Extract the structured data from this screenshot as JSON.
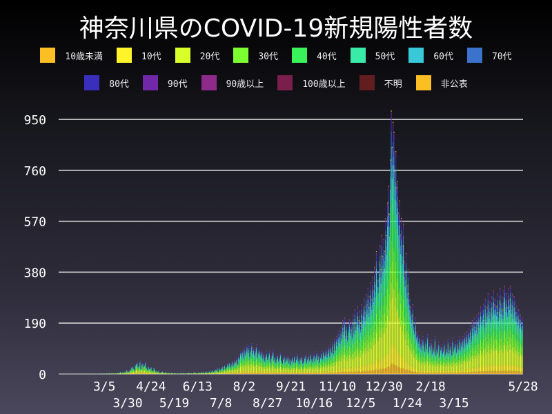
{
  "chart_data": {
    "type": "bar",
    "stacked": true,
    "title": "神奈川県のCOVID-19新規陽性者数",
    "xlabel": "",
    "ylabel": "",
    "ylim": [
      0,
      950
    ],
    "yticks": [
      0,
      190,
      380,
      570,
      760,
      950
    ],
    "grid": true,
    "legend_placement": "top",
    "x_start": "2020-01-16",
    "x_end": "2021-05-28",
    "xtick_labels": [
      "3/5",
      "3/30",
      "4/24",
      "5/19",
      "6/13",
      "7/8",
      "8/2",
      "8/27",
      "9/21",
      "10/16",
      "11/10",
      "12/5",
      "12/30",
      "1/24",
      "2/18",
      "3/15",
      "5/28"
    ],
    "xtick_dates": [
      "2020-03-05",
      "2020-03-30",
      "2020-04-24",
      "2020-05-19",
      "2020-06-13",
      "2020-07-08",
      "2020-08-02",
      "2020-08-27",
      "2020-09-21",
      "2020-10-16",
      "2020-11-10",
      "2020-12-05",
      "2020-12-30",
      "2021-01-24",
      "2021-02-18",
      "2021-03-15",
      "2021-05-28"
    ],
    "series": [
      {
        "name": "10歳未満",
        "color": "#fbbf24",
        "share": 0.04
      },
      {
        "name": "10代",
        "color": "#fff42a",
        "share": 0.08
      },
      {
        "name": "20代",
        "color": "#d8ff2a",
        "share": 0.22
      },
      {
        "name": "30代",
        "color": "#7cff30",
        "share": 0.16
      },
      {
        "name": "40代",
        "color": "#38f45a",
        "share": 0.15
      },
      {
        "name": "50代",
        "color": "#3aeaa8",
        "share": 0.13
      },
      {
        "name": "60代",
        "color": "#38c8d8",
        "share": 0.08
      },
      {
        "name": "70代",
        "color": "#3a72cc",
        "share": 0.06
      },
      {
        "name": "80代",
        "color": "#3a2ebc",
        "share": 0.045
      },
      {
        "name": "90代",
        "color": "#7028a8",
        "share": 0.02
      },
      {
        "name": "90歳以上",
        "color": "#8e2a8a",
        "share": 0.005
      },
      {
        "name": "100歳以上",
        "color": "#7a1e4c",
        "share": 0.002
      },
      {
        "name": "不明",
        "color": "#621e1e",
        "share": 0.003
      },
      {
        "name": "非公表",
        "color": "#fbbf24",
        "share": 0.005
      }
    ],
    "daily_totals": [
      0,
      0,
      0,
      0,
      0,
      0,
      0,
      0,
      0,
      0,
      0,
      0,
      0,
      0,
      0,
      0,
      0,
      0,
      0,
      0,
      1,
      0,
      0,
      0,
      0,
      1,
      0,
      0,
      0,
      1,
      0,
      2,
      1,
      0,
      0,
      1,
      0,
      2,
      1,
      0,
      1,
      0,
      1,
      2,
      0,
      1,
      3,
      1,
      0,
      2,
      1,
      3,
      0,
      2,
      4,
      1,
      3,
      2,
      5,
      1,
      3,
      4,
      2,
      5,
      3,
      6,
      8,
      4,
      7,
      5,
      9,
      6,
      12,
      15,
      8,
      10,
      14,
      18,
      25,
      30,
      22,
      15,
      35,
      40,
      45,
      28,
      33,
      50,
      20,
      38,
      42,
      30,
      35,
      48,
      25,
      18,
      30,
      22,
      20,
      28,
      15,
      12,
      25,
      18,
      10,
      14,
      8,
      12,
      6,
      5,
      9,
      10,
      7,
      5,
      8,
      4,
      6,
      3,
      5,
      4,
      2,
      6,
      3,
      2,
      5,
      3,
      1,
      4,
      2,
      3,
      1,
      5,
      2,
      3,
      4,
      2,
      5,
      1,
      3,
      6,
      4,
      2,
      5,
      3,
      1,
      8,
      4,
      6,
      3,
      2,
      7,
      5,
      4,
      9,
      5,
      8,
      3,
      6,
      10,
      7,
      4,
      8,
      12,
      6,
      10,
      15,
      9,
      13,
      18,
      14,
      22,
      10,
      25,
      17,
      20,
      24,
      30,
      18,
      35,
      22,
      28,
      40,
      32,
      45,
      28,
      38,
      50,
      34,
      42,
      55,
      48,
      60,
      40,
      70,
      62,
      85,
      75,
      90,
      68,
      100,
      80,
      95,
      110,
      88,
      105,
      72,
      96,
      115,
      85,
      100,
      78,
      92,
      110,
      70,
      88,
      98,
      82,
      75,
      90,
      65,
      80,
      55,
      70,
      85,
      60,
      72,
      88,
      50,
      66,
      78,
      90,
      58,
      70,
      48,
      62,
      75,
      54,
      68,
      80,
      55,
      45,
      60,
      72,
      50,
      65,
      58,
      70,
      45,
      62,
      40,
      55,
      68,
      50,
      72,
      48,
      60,
      76,
      55,
      42,
      64,
      58,
      70,
      45,
      52,
      66,
      74,
      48,
      60,
      72,
      55,
      80,
      62,
      50,
      65,
      78,
      55,
      70,
      84,
      60,
      75,
      50,
      68,
      85,
      62,
      90,
      72,
      80,
      95,
      70,
      88,
      105,
      75,
      110,
      90,
      120,
      85,
      130,
      100,
      140,
      115,
      150,
      160,
      130,
      175,
      145,
      200,
      170,
      210,
      155,
      190,
      140,
      180,
      205,
      165,
      195,
      150,
      220,
      175,
      240,
      190,
      210,
      250,
      200,
      235,
      180,
      260,
      215,
      245,
      280,
      230,
      300,
      260,
      320,
      250,
      290,
      340,
      280,
      360,
      310,
      400,
      330,
      460,
      380,
      350,
      420,
      480,
      390,
      520,
      440,
      500,
      460,
      580,
      520,
      640,
      700,
      600,
      800,
      980,
      850,
      940,
      900,
      760,
      830,
      700,
      720,
      600,
      650,
      520,
      580,
      480,
      560,
      420,
      380,
      450,
      330,
      390,
      300,
      280,
      250,
      220,
      260,
      190,
      170,
      210,
      150,
      160,
      130,
      145,
      110,
      125,
      100,
      140,
      120,
      95,
      130,
      105,
      150,
      90,
      115,
      100,
      125,
      85,
      110,
      95,
      140,
      80,
      105,
      90,
      120,
      75,
      100,
      110,
      85,
      95,
      120,
      80,
      105,
      90,
      130,
      85,
      100,
      115,
      80,
      135,
      95,
      110,
      120,
      90,
      125,
      105,
      140,
      100,
      130,
      115,
      140,
      110,
      150,
      125,
      160,
      130,
      170,
      150,
      180,
      140,
      200,
      165,
      210,
      175,
      190,
      220,
      170,
      230,
      200,
      250,
      210,
      235,
      260,
      200,
      280,
      220,
      250,
      300,
      240,
      270,
      220,
      290,
      250,
      310,
      260,
      280,
      250,
      300,
      230,
      270,
      320,
      260,
      290,
      240,
      310,
      330,
      270,
      300,
      250,
      320,
      280,
      330,
      260,
      300,
      240,
      290,
      270,
      230,
      250,
      210,
      240,
      200,
      220,
      190,
      210
    ]
  }
}
